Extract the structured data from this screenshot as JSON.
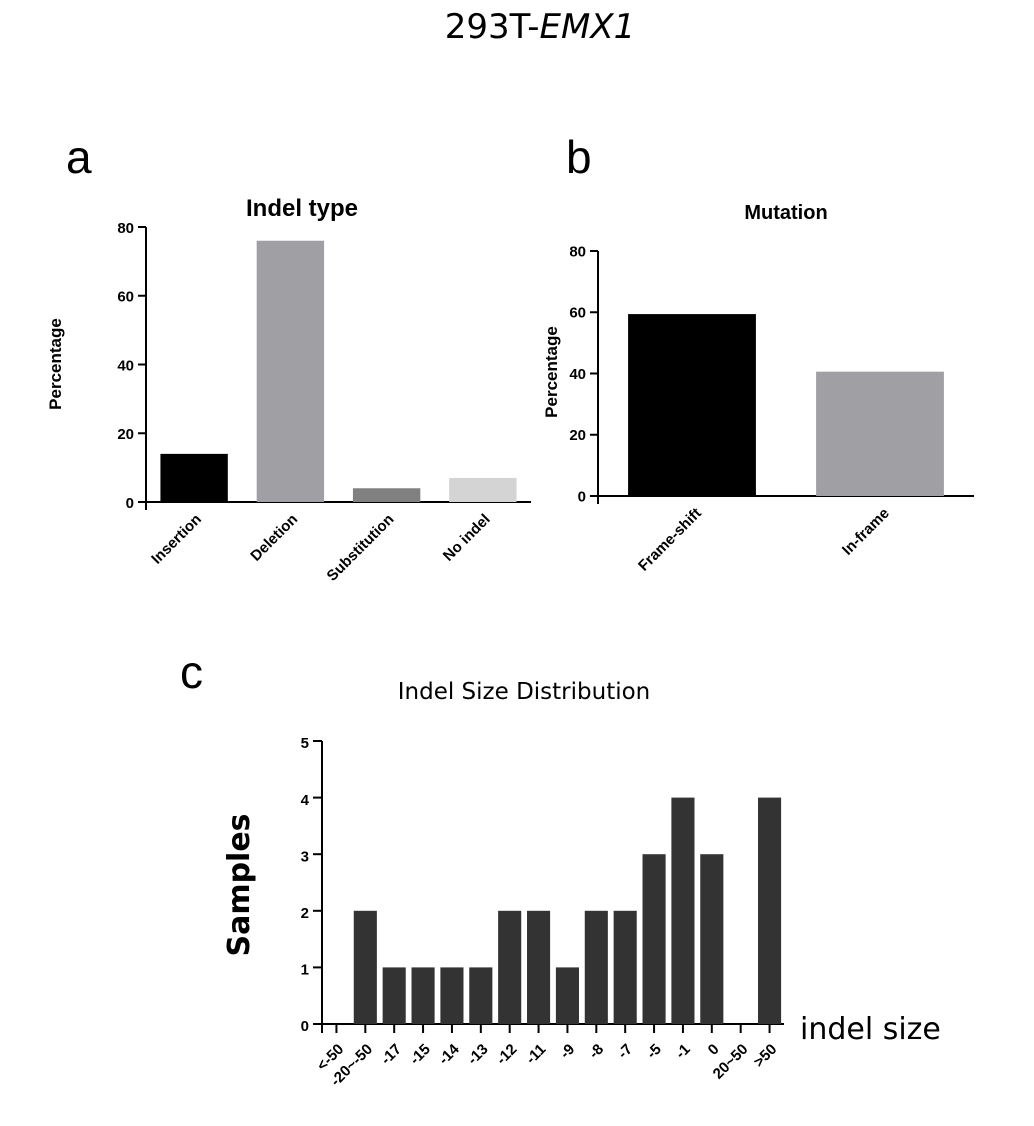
{
  "figure_title": {
    "prefix": "293T-",
    "gene": "EMX1"
  },
  "chart_data": [
    {
      "panel": "a",
      "type": "bar",
      "title": "Indel type",
      "xlabel": "",
      "ylabel": "Percentage",
      "ylim": [
        0,
        80
      ],
      "yticks": [
        0,
        20,
        40,
        60,
        80
      ],
      "categories": [
        "Insertion",
        "Deletion",
        "Substitution",
        "No indel"
      ],
      "values": [
        14,
        76,
        4,
        7
      ],
      "colors": [
        "#000000",
        "#a0a0a4",
        "#808080",
        "#d4d4d4"
      ],
      "grid": false
    },
    {
      "panel": "b",
      "type": "bar",
      "title": "Mutation",
      "xlabel": "",
      "ylabel": "Percentage",
      "ylim": [
        0,
        80
      ],
      "yticks": [
        0,
        20,
        40,
        60,
        80
      ],
      "categories": [
        "Frame-shift",
        "In-frame"
      ],
      "values": [
        59.4,
        40.6
      ],
      "colors": [
        "#000000",
        "#a0a0a4"
      ],
      "grid": false
    },
    {
      "panel": "c",
      "type": "bar",
      "title": "Indel Size Distribution",
      "xlabel": "indel size",
      "ylabel": "Samples",
      "ylim": [
        0,
        5
      ],
      "yticks": [
        0,
        1,
        2,
        3,
        4,
        5
      ],
      "categories": [
        "<-50",
        "-20~-50",
        "-17",
        "-15",
        "-14",
        "-13",
        "-12",
        "-11",
        "-9",
        "-8",
        "-7",
        "-5",
        "-1",
        "0",
        "20~50",
        ">50"
      ],
      "values": [
        0,
        2,
        1,
        1,
        1,
        1,
        2,
        2,
        1,
        2,
        2,
        3,
        4,
        3,
        0,
        4
      ],
      "colors": [
        "#333333"
      ],
      "grid": false
    }
  ]
}
